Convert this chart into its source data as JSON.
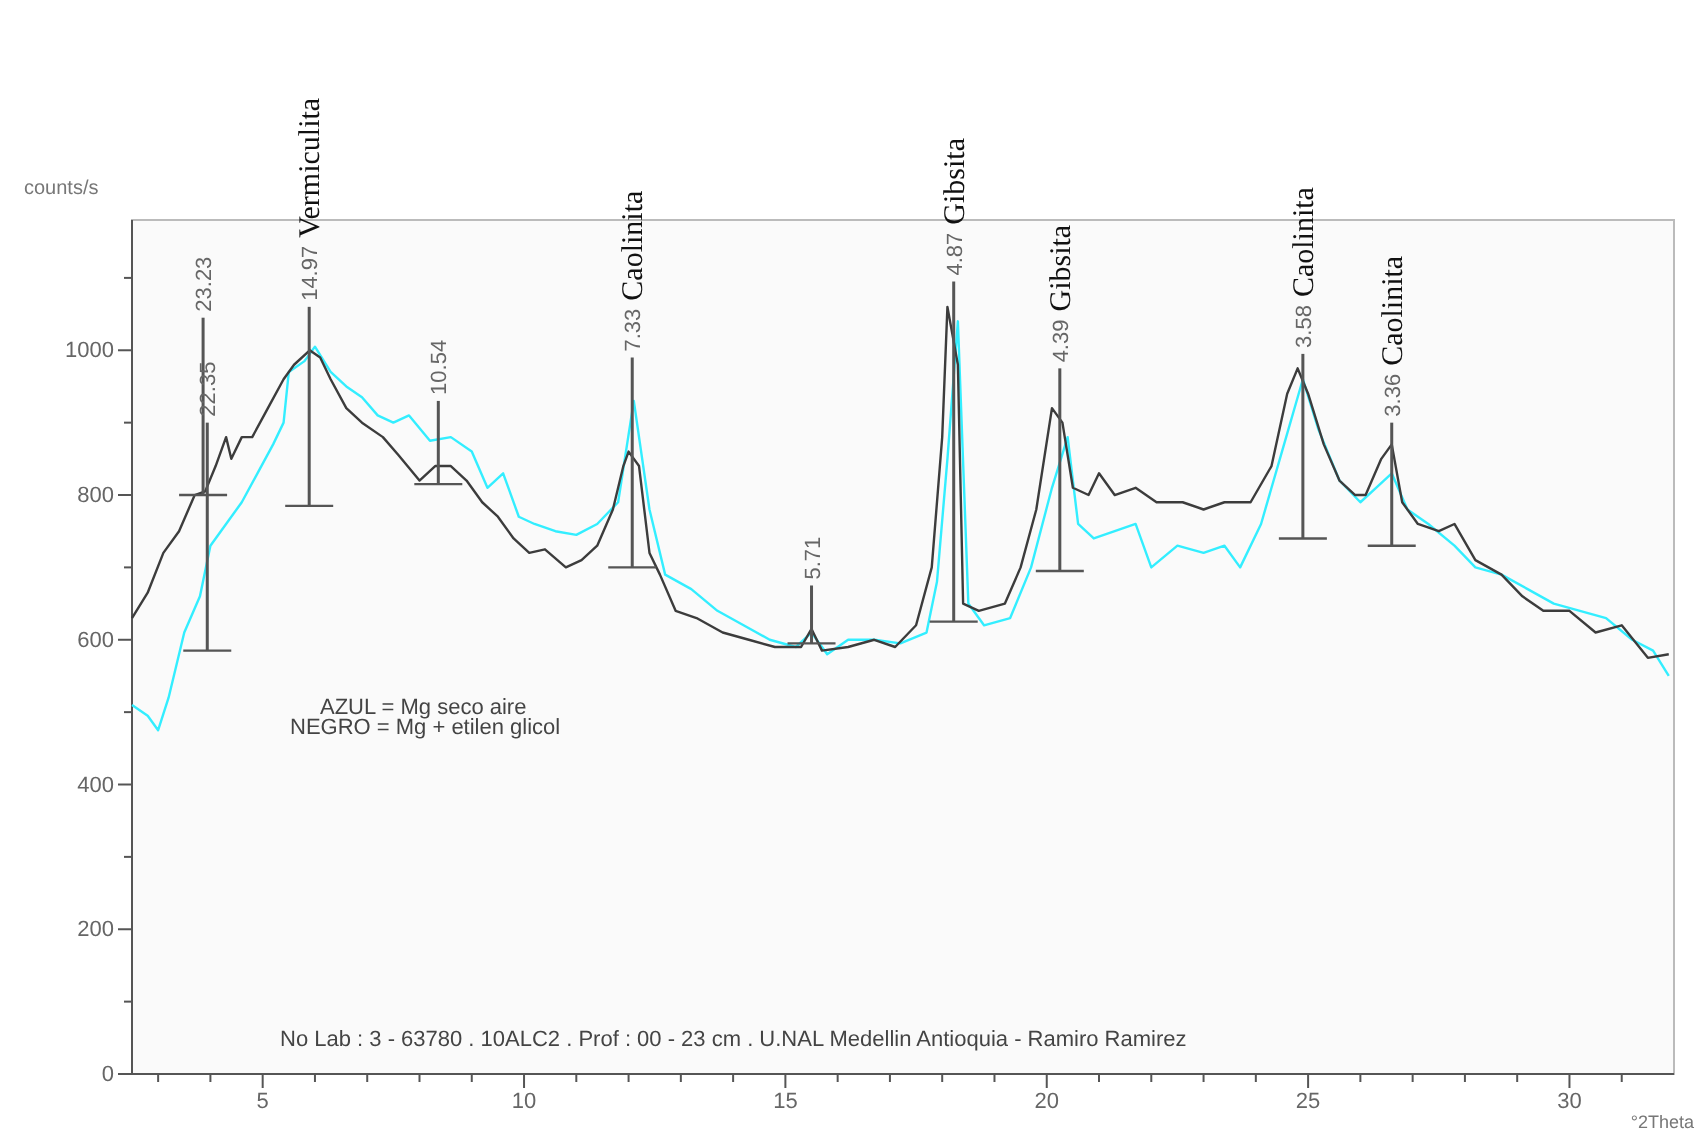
{
  "chart_data": {
    "type": "line",
    "xlabel": "°2Theta",
    "ylabel": "counts/s",
    "xlim": [
      2.5,
      32
    ],
    "ylim": [
      0,
      1180
    ],
    "xticks": [
      {
        "value": 3,
        "label": null
      },
      {
        "value": 4,
        "label": null
      },
      5,
      {
        "value": 6,
        "label": null
      },
      {
        "value": 7,
        "label": null
      },
      {
        "value": 8,
        "label": null
      },
      {
        "value": 9,
        "label": null
      },
      10,
      {
        "value": 11,
        "label": null
      },
      {
        "value": 12,
        "label": null
      },
      {
        "value": 13,
        "label": null
      },
      {
        "value": 14,
        "label": null
      },
      15,
      {
        "value": 16,
        "label": null
      },
      {
        "value": 17,
        "label": null
      },
      {
        "value": 18,
        "label": null
      },
      {
        "value": 19,
        "label": null
      },
      20,
      {
        "value": 21,
        "label": null
      },
      {
        "value": 22,
        "label": null
      },
      {
        "value": 23,
        "label": null
      },
      {
        "value": 24,
        "label": null
      },
      25,
      {
        "value": 26,
        "label": null
      },
      {
        "value": 27,
        "label": null
      },
      {
        "value": 28,
        "label": null
      },
      {
        "value": 29,
        "label": null
      },
      30,
      {
        "value": 31,
        "label": null
      }
    ],
    "yticks": [
      0,
      {
        "value": 100,
        "label": null
      },
      200,
      {
        "value": 300,
        "label": null
      },
      400,
      {
        "value": 500,
        "label": null
      },
      600,
      {
        "value": 700,
        "label": null
      },
      800,
      {
        "value": 900,
        "label": null
      },
      1000,
      {
        "value": 1100,
        "label": null
      }
    ],
    "grid": false,
    "marker": "none",
    "line_style": "solid",
    "series": [
      {
        "color": "#33eeff",
        "x": [
          2.5,
          2.8,
          3.0,
          3.2,
          3.5,
          3.8,
          4.0,
          4.3,
          4.6,
          4.9,
          5.2,
          5.4,
          5.5,
          5.8,
          6.0,
          6.3,
          6.6,
          6.9,
          7.2,
          7.5,
          7.8,
          8.2,
          8.6,
          9.0,
          9.3,
          9.6,
          9.9,
          10.2,
          10.6,
          11.0,
          11.4,
          11.8,
          12.1,
          12.4,
          12.7,
          13.2,
          13.7,
          14.2,
          14.7,
          15.2,
          15.5,
          15.8,
          16.2,
          16.7,
          17.2,
          17.7,
          17.9,
          18.1,
          18.3,
          18.5,
          18.8,
          19.3,
          19.7,
          20.1,
          20.4,
          20.6,
          20.9,
          21.3,
          21.7,
          22.0,
          22.5,
          23.0,
          23.4,
          23.7,
          24.1,
          24.5,
          24.9,
          25.2,
          25.6,
          26.0,
          26.3,
          26.6,
          26.9,
          27.3,
          27.8,
          28.2,
          28.7,
          29.2,
          29.7,
          30.2,
          30.7,
          31.2,
          31.6,
          31.9
        ],
        "values": [
          510,
          495,
          475,
          520,
          610,
          660,
          730,
          760,
          790,
          830,
          870,
          900,
          970,
          985,
          1005,
          970,
          950,
          935,
          910,
          900,
          910,
          875,
          880,
          860,
          810,
          830,
          770,
          760,
          750,
          745,
          760,
          790,
          930,
          780,
          690,
          670,
          640,
          620,
          600,
          590,
          610,
          580,
          600,
          600,
          595,
          610,
          680,
          850,
          1040,
          650,
          620,
          630,
          700,
          810,
          880,
          760,
          740,
          750,
          760,
          700,
          730,
          720,
          730,
          700,
          760,
          860,
          960,
          890,
          820,
          790,
          810,
          830,
          780,
          760,
          730,
          700,
          690,
          670,
          650,
          640,
          630,
          600,
          585,
          550
        ]
      },
      {
        "color": "#3c3c3c",
        "x": [
          2.5,
          2.8,
          3.1,
          3.4,
          3.7,
          3.9,
          4.1,
          4.3,
          4.4,
          4.6,
          4.8,
          5.1,
          5.4,
          5.6,
          5.9,
          6.1,
          6.3,
          6.6,
          6.9,
          7.3,
          7.6,
          8.0,
          8.3,
          8.6,
          8.9,
          9.2,
          9.5,
          9.8,
          10.1,
          10.4,
          10.8,
          11.1,
          11.4,
          11.7,
          11.9,
          12.0,
          12.2,
          12.4,
          12.6,
          12.9,
          13.3,
          13.8,
          14.3,
          14.8,
          15.3,
          15.5,
          15.7,
          16.2,
          16.7,
          17.1,
          17.5,
          17.8,
          18.0,
          18.1,
          18.3,
          18.4,
          18.7,
          19.2,
          19.5,
          19.8,
          20.1,
          20.3,
          20.5,
          20.8,
          21.0,
          21.3,
          21.7,
          22.1,
          22.6,
          23.0,
          23.4,
          23.9,
          24.3,
          24.6,
          24.8,
          25.0,
          25.3,
          25.6,
          25.9,
          26.1,
          26.4,
          26.6,
          26.8,
          27.1,
          27.5,
          27.8,
          28.2,
          28.7,
          29.1,
          29.5,
          30.0,
          30.5,
          31.0,
          31.5,
          31.9
        ],
        "values": [
          630,
          665,
          720,
          750,
          800,
          805,
          840,
          880,
          850,
          880,
          880,
          920,
          960,
          980,
          1000,
          990,
          960,
          920,
          900,
          880,
          855,
          820,
          840,
          840,
          820,
          790,
          770,
          740,
          720,
          725,
          700,
          710,
          730,
          780,
          840,
          860,
          840,
          720,
          690,
          640,
          630,
          610,
          600,
          590,
          590,
          615,
          585,
          590,
          600,
          590,
          620,
          700,
          880,
          1060,
          980,
          650,
          640,
          650,
          700,
          780,
          920,
          900,
          810,
          800,
          830,
          800,
          810,
          790,
          790,
          780,
          790,
          790,
          840,
          940,
          975,
          940,
          870,
          820,
          800,
          800,
          850,
          870,
          790,
          760,
          750,
          760,
          710,
          690,
          660,
          640,
          640,
          610,
          620,
          575,
          580
        ]
      },
      {
        "type": "bar",
        "color": "#555555",
        "x": [
          3.86,
          3.94,
          5.89,
          8.36,
          12.07,
          15.5,
          18.22,
          20.25,
          24.9,
          26.6
        ],
        "base": [
          800,
          585,
          785,
          815,
          700,
          595,
          625,
          695,
          740,
          730
        ],
        "values": [
          245,
          315,
          275,
          115,
          290,
          80,
          470,
          280,
          255,
          170
        ]
      }
    ],
    "annotations": [
      {
        "text": "23.23",
        "x": 3.86,
        "y": 1045
      },
      {
        "text": "22.35",
        "x": 3.94,
        "y": 900
      },
      {
        "text": "14.97",
        "x": 5.89,
        "y": 1060
      },
      "Vermiculita",
      {
        "text": "10.54",
        "x": 8.36,
        "y": 930
      },
      {
        "text": "7.33",
        "x": 12.07,
        "y": 990
      },
      "Caolinita",
      {
        "text": "5.71",
        "x": 15.5,
        "y": 675
      },
      {
        "text": "4.87",
        "x": 18.22,
        "y": 1095
      },
      "Gibsita",
      {
        "text": "4.39",
        "x": 20.25,
        "y": 975
      },
      "Gibsita",
      {
        "text": "3.58",
        "x": 24.9,
        "y": 995
      },
      "Caolinita",
      {
        "text": "3.36",
        "x": 26.6,
        "y": 900
      },
      "Caolinita",
      "AZUL = Mg seco aire",
      "NEGRO = Mg + etilen glicol",
      "No  Lab : 3 - 63780 . 10ALC2 . Prof : 00 - 23 cm . U.NAL Medellin Antioquia - Ramiro Ramirez"
    ]
  }
}
